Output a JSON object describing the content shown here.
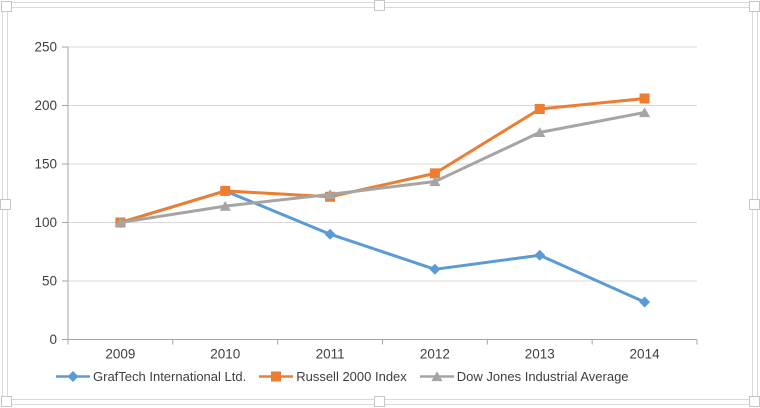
{
  "chart_data": {
    "type": "line",
    "title": "",
    "xlabel": "",
    "ylabel": "",
    "x": [
      "2009",
      "2010",
      "2011",
      "2012",
      "2013",
      "2014"
    ],
    "series": [
      {
        "name": "GrafTech International Ltd.",
        "values": [
          100,
          127,
          90,
          60,
          72,
          32
        ],
        "color": "#5B9BD5",
        "marker": "diamond"
      },
      {
        "name": "Russell 2000 Index",
        "values": [
          100,
          127,
          122,
          142,
          197,
          206
        ],
        "color": "#ED7D31",
        "marker": "square"
      },
      {
        "name": "Dow Jones Industrial Average",
        "values": [
          100,
          114,
          124,
          135,
          177,
          194
        ],
        "color": "#A5A5A5",
        "marker": "triangle"
      }
    ],
    "ylim": [
      0,
      250
    ],
    "yticks": [
      0,
      50,
      100,
      150,
      200,
      250
    ],
    "grid": true,
    "legend_position": "bottom",
    "gridline_color": "#d9d9d9",
    "axis_color": "#a6a6a6",
    "tick_label_color": "#3f3f3f",
    "background_color": "#ffffff"
  },
  "selection": {
    "border_color": "#d9d9d9",
    "handle_fill": "#ffffff",
    "handle_border_color": "#c6c6c6"
  }
}
